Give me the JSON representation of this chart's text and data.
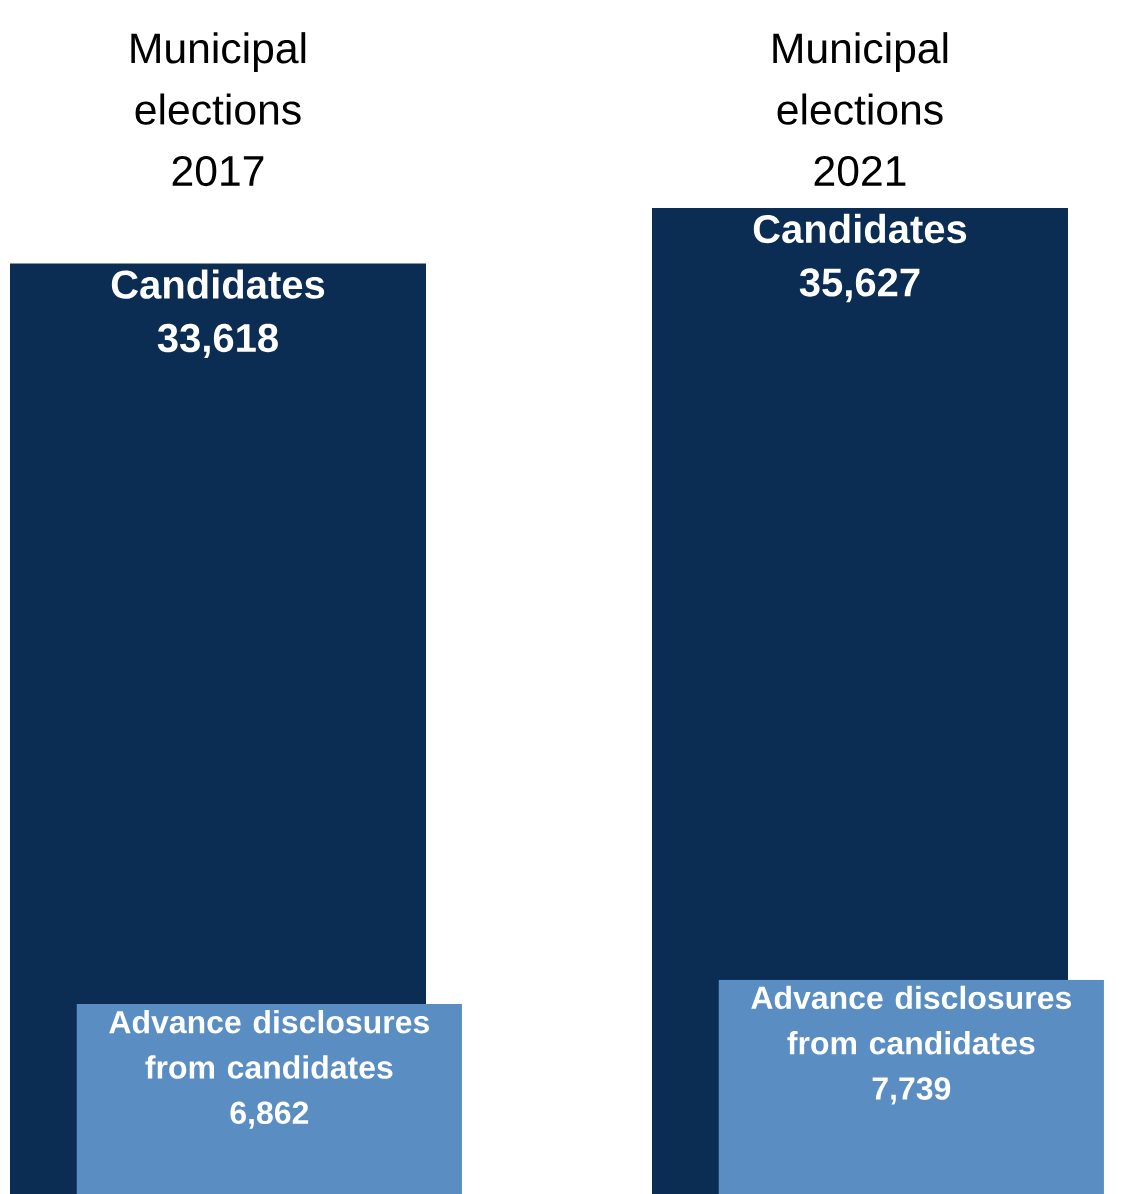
{
  "chart_data": {
    "type": "bar",
    "categories": [
      "Municipal elections 2017",
      "Municipal elections 2021"
    ],
    "series": [
      {
        "name": "Candidates",
        "color": "#0c2d53",
        "values": [
          33618,
          35627
        ],
        "value_labels": [
          "33,618",
          "35,627"
        ]
      },
      {
        "name": "Advance disclosures from candidates",
        "color": "#5a8ec3",
        "values": [
          6862,
          7739
        ],
        "value_labels": [
          "6,862",
          "7,739"
        ]
      }
    ]
  }
}
